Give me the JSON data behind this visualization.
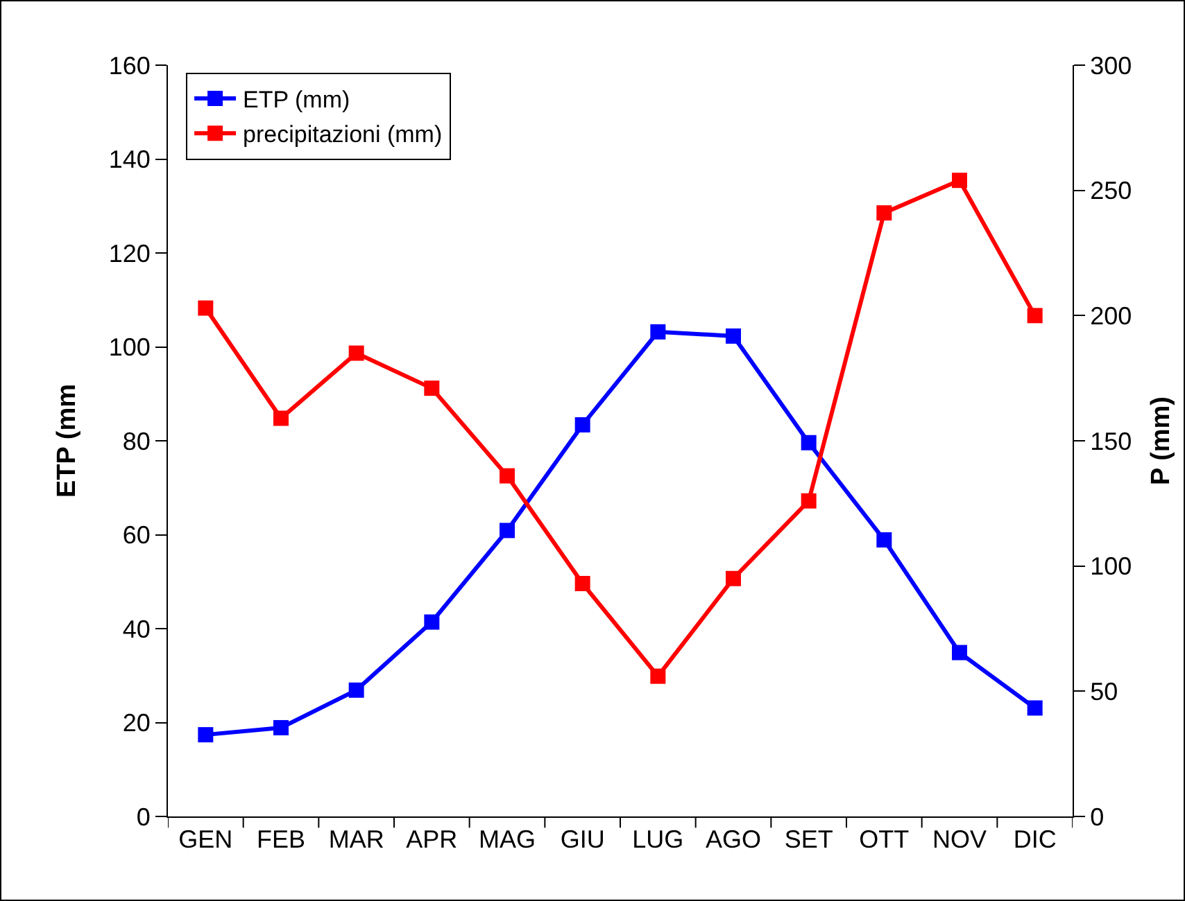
{
  "chart_data": {
    "type": "line",
    "ylabel": "ETP (mm",
    "y2label": "P (mm)",
    "categories": [
      "GEN",
      "FEB",
      "MAR",
      "APR",
      "MAG",
      "GIU",
      "LUG",
      "AGO",
      "SET",
      "OTT",
      "NOV",
      "DIC"
    ],
    "series": [
      {
        "name": "ETP (mm)",
        "color": "#0000ff",
        "values": [
          17.4,
          18.9,
          26.9,
          41.4,
          60.9,
          83.4,
          103.2,
          102.3,
          79.6,
          58.9,
          34.9,
          23.1
        ]
      },
      {
        "name": "precipitazioni (mm)",
        "color": "#ff0000",
        "axis": "y2",
        "values": [
          203,
          159,
          185,
          171,
          136,
          93,
          56,
          95,
          126,
          241,
          254,
          200
        ]
      }
    ],
    "ylim": [
      0,
      160
    ],
    "yticks": [
      0,
      20,
      40,
      60,
      80,
      100,
      120,
      140,
      160
    ],
    "y2lim": [
      0,
      300
    ],
    "y2ticks": [
      0,
      50,
      100,
      150,
      200,
      250,
      300
    ],
    "grid": false,
    "legend": "top left",
    "marker": "square",
    "line_style": "solid"
  }
}
